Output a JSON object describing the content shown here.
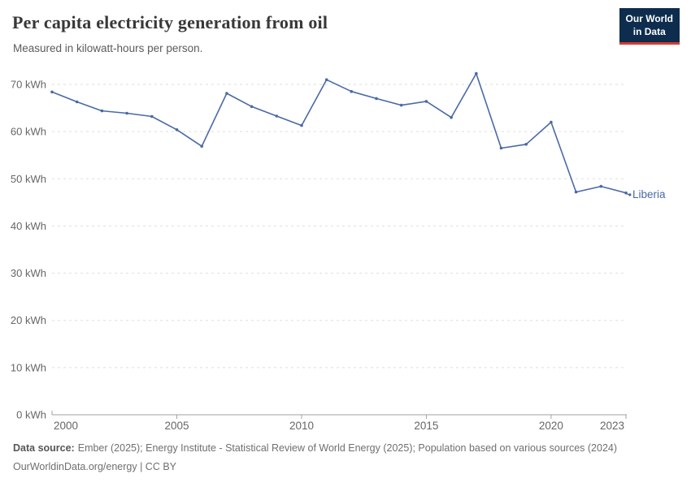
{
  "header": {
    "title": "Per capita electricity generation from oil",
    "subtitle": "Measured in kilowatt-hours per person.",
    "logo": {
      "line1": "Our World",
      "line2": "in Data",
      "bg_color": "#0d2c4e",
      "accent_color": "#d63c30"
    }
  },
  "chart_data": {
    "type": "line",
    "title": "Per capita electricity generation from oil",
    "subtitle": "Measured in kilowatt-hours per person.",
    "unit": "kWh",
    "grid": true,
    "legend_position": "end-of-line-label",
    "xlim": [
      2000,
      2023
    ],
    "ylim": [
      0,
      73
    ],
    "x": [
      2000,
      2001,
      2002,
      2003,
      2004,
      2005,
      2006,
      2007,
      2008,
      2009,
      2010,
      2011,
      2012,
      2013,
      2014,
      2015,
      2016,
      2017,
      2018,
      2019,
      2020,
      2021,
      2022,
      2023
    ],
    "series": [
      {
        "name": "Liberia",
        "color": "#4a69a5",
        "values": [
          68.4,
          66.3,
          64.4,
          63.9,
          63.2,
          60.4,
          56.9,
          68.1,
          65.3,
          63.3,
          61.3,
          71.0,
          68.5,
          67.0,
          65.6,
          66.4,
          63.0,
          72.3,
          56.5,
          57.3,
          62.0,
          47.2,
          48.4,
          47.0
        ]
      }
    ],
    "y_ticks": [
      {
        "value": 0,
        "label": "0 kWh"
      },
      {
        "value": 10,
        "label": "10 kWh"
      },
      {
        "value": 20,
        "label": "20 kWh"
      },
      {
        "value": 30,
        "label": "30 kWh"
      },
      {
        "value": 40,
        "label": "40 kWh"
      },
      {
        "value": 50,
        "label": "50 kWh"
      },
      {
        "value": 60,
        "label": "60 kWh"
      },
      {
        "value": 70,
        "label": "70 kWh"
      }
    ],
    "x_ticks": [
      {
        "value": 2000,
        "label": "2000"
      },
      {
        "value": 2005,
        "label": "2005"
      },
      {
        "value": 2010,
        "label": "2010"
      },
      {
        "value": 2015,
        "label": "2015"
      },
      {
        "value": 2020,
        "label": "2020"
      },
      {
        "value": 2023,
        "label": "2023"
      }
    ],
    "colors": {
      "gridline": "#dedede",
      "axis": "#a1a1a1",
      "tick_label": "#666666"
    }
  },
  "footer": {
    "line1_label": "Data source:",
    "line1_text": "Ember (2025); Energy Institute - Statistical Review of World Energy (2025); Population based on various sources (2024)",
    "line2": "OurWorldinData.org/energy | CC BY"
  }
}
